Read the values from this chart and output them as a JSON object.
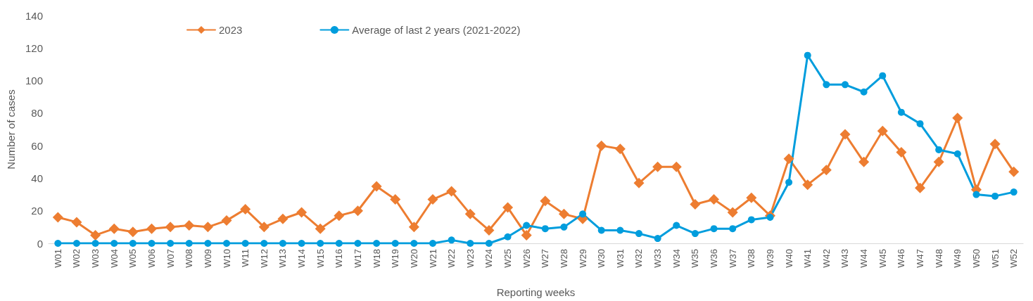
{
  "chart_data": {
    "type": "line",
    "xlabel": "Reporting weeks",
    "ylabel": "Number of cases",
    "categories": [
      "W01",
      "W02",
      "W03",
      "W04",
      "W05",
      "W06",
      "W07",
      "W08",
      "W09",
      "W10",
      "W11",
      "W12",
      "W13",
      "W14",
      "W15",
      "W16",
      "W17",
      "W18",
      "W19",
      "W20",
      "W21",
      "W22",
      "W23",
      "W24",
      "W25",
      "W26",
      "W27",
      "W28",
      "W29",
      "W30",
      "W31",
      "W32",
      "W33",
      "W34",
      "W35",
      "W36",
      "W37",
      "W38",
      "W39",
      "W40",
      "W41",
      "W42",
      "W43",
      "W44",
      "W45",
      "W46",
      "W47",
      "W48",
      "W49",
      "W50",
      "W51",
      "W52"
    ],
    "series": [
      {
        "name": "2023",
        "color": "#ed7d31",
        "marker": "diamond",
        "values": [
          16,
          13,
          5,
          9,
          7,
          9,
          10,
          11,
          10,
          14,
          21,
          10,
          15,
          19,
          9,
          17,
          20,
          35,
          27,
          10,
          27,
          32,
          18,
          8,
          22,
          5,
          26,
          18,
          15,
          60,
          58,
          37,
          47,
          47,
          24,
          27,
          19,
          28,
          17,
          52,
          36,
          45,
          67,
          50,
          69,
          56,
          34,
          50,
          77,
          33,
          61,
          44
        ]
      },
      {
        "name": "Average of last 2 years (2021-2022)",
        "color": "#009ddd",
        "marker": "circle",
        "values": [
          0,
          0,
          0,
          0,
          0,
          0,
          0,
          0,
          0,
          0,
          0,
          0,
          0,
          0,
          0,
          0,
          0,
          0,
          0,
          0,
          0,
          2,
          0,
          0,
          4,
          11,
          9,
          10,
          18,
          8,
          8,
          6,
          3,
          11,
          6,
          9,
          9,
          14.5,
          16,
          37.5,
          115.5,
          97.5,
          97.5,
          93,
          103,
          80.5,
          73.5,
          57.5,
          55,
          30,
          29,
          31.5
        ]
      }
    ],
    "ylim": [
      0,
      140
    ],
    "yticks": [
      0,
      20,
      40,
      60,
      80,
      100,
      120,
      140
    ],
    "grid": false,
    "legend": "top left",
    "line_style": "solid"
  }
}
